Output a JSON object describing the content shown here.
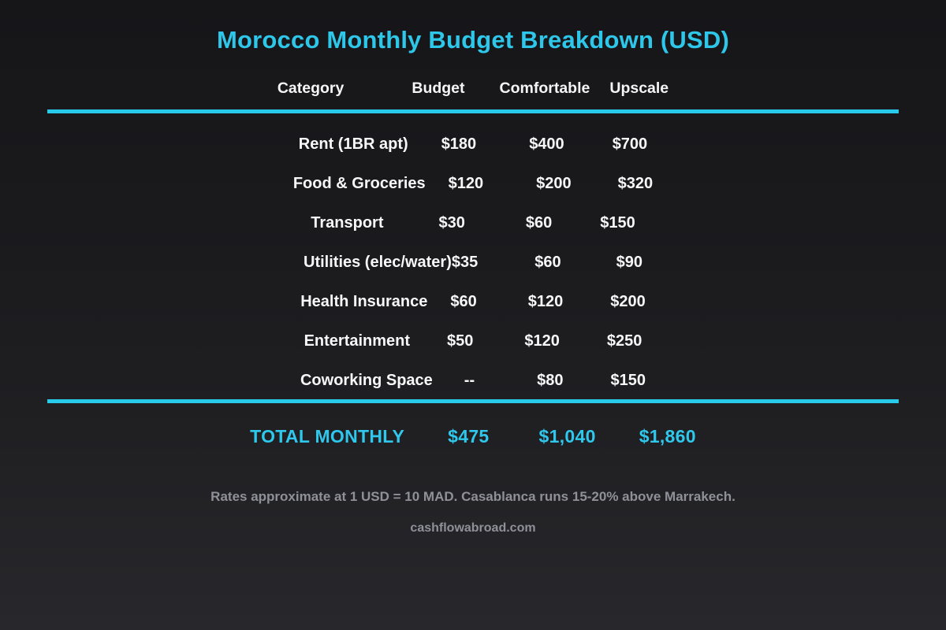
{
  "chart_data": {
    "type": "table",
    "title": "Morocco Monthly Budget Breakdown (USD)",
    "columns": [
      "Category",
      "Budget",
      "Comfortable",
      "Upscale"
    ],
    "rows": [
      [
        "Rent (1BR apt)",
        "$180",
        "$400",
        "$700"
      ],
      [
        "Food & Groceries",
        "$120",
        "$200",
        "$320"
      ],
      [
        "Transport",
        "$30",
        "$60",
        "$150"
      ],
      [
        "Utilities (elec/water)",
        "$35",
        "$60",
        "$90"
      ],
      [
        "Health Insurance",
        "$60",
        "$120",
        "$200"
      ],
      [
        "Entertainment",
        "$50",
        "$120",
        "$250"
      ],
      [
        "Coworking Space",
        "--",
        "$80",
        "$150"
      ]
    ],
    "total_row": [
      "TOTAL MONTHLY",
      "$475",
      "$1,040",
      "$1,860"
    ],
    "annotations": [
      "Rates approximate at 1 USD = 10 MAD. Casablanca runs 15-20% above Marrakech.",
      "cashflowabroad.com"
    ]
  },
  "colors": {
    "accent_text": "#2ec6e9",
    "divider": "#27cbe9",
    "body_text": "#f5f5f7",
    "muted_text": "#8f9098",
    "background_top": "#161619",
    "background_bottom": "#28282c"
  }
}
